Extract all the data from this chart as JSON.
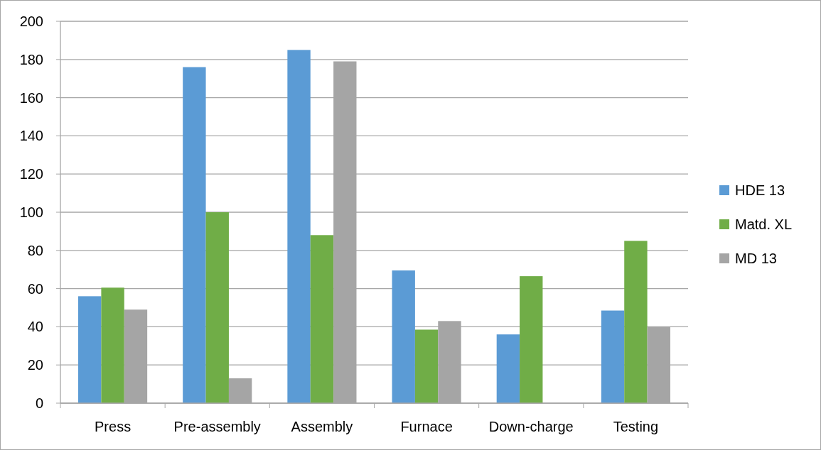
{
  "chart_data": {
    "type": "bar",
    "categories": [
      "Press",
      "Pre-assembly",
      "Assembly",
      "Furnace",
      "Down-charge",
      "Testing"
    ],
    "series": [
      {
        "name": "HDE 13",
        "color": "#5b9bd5",
        "values": [
          56,
          176,
          185,
          69.5,
          36,
          48.5
        ]
      },
      {
        "name": "Matd. XL",
        "color": "#70ad47",
        "values": [
          60.5,
          100,
          88,
          38.5,
          66.5,
          85
        ]
      },
      {
        "name": "MD 13",
        "color": "#a5a5a5",
        "values": [
          49,
          13,
          179,
          43,
          null,
          40
        ]
      }
    ],
    "ylim": [
      0,
      200
    ],
    "yticks": [
      0,
      20,
      40,
      60,
      80,
      100,
      120,
      140,
      160,
      180,
      200
    ],
    "grid": "y",
    "legend": "right"
  }
}
